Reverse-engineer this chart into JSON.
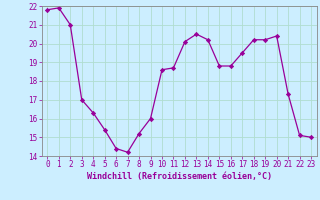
{
  "x": [
    0,
    1,
    2,
    3,
    4,
    5,
    6,
    7,
    8,
    9,
    10,
    11,
    12,
    13,
    14,
    15,
    16,
    17,
    18,
    19,
    20,
    21,
    22,
    23
  ],
  "y": [
    21.8,
    21.9,
    21.0,
    17.0,
    16.3,
    15.4,
    14.4,
    14.2,
    15.2,
    16.0,
    18.6,
    18.7,
    20.1,
    20.5,
    20.2,
    18.8,
    18.8,
    19.5,
    20.2,
    20.2,
    20.4,
    17.3,
    15.1,
    15.0
  ],
  "line_color": "#990099",
  "marker": "D",
  "marker_size": 2.2,
  "bg_color": "#cceeff",
  "grid_color": "#aaddcc",
  "xlabel": "Windchill (Refroidissement éolien,°C)",
  "xlabel_color": "#990099",
  "tick_color": "#990099",
  "ylim": [
    14,
    22
  ],
  "xlim": [
    -0.5,
    23.5
  ],
  "yticks": [
    14,
    15,
    16,
    17,
    18,
    19,
    20,
    21,
    22
  ],
  "xticks": [
    0,
    1,
    2,
    3,
    4,
    5,
    6,
    7,
    8,
    9,
    10,
    11,
    12,
    13,
    14,
    15,
    16,
    17,
    18,
    19,
    20,
    21,
    22,
    23
  ],
  "line_width": 0.9,
  "tick_fontsize": 5.5,
  "xlabel_fontsize": 6.0
}
